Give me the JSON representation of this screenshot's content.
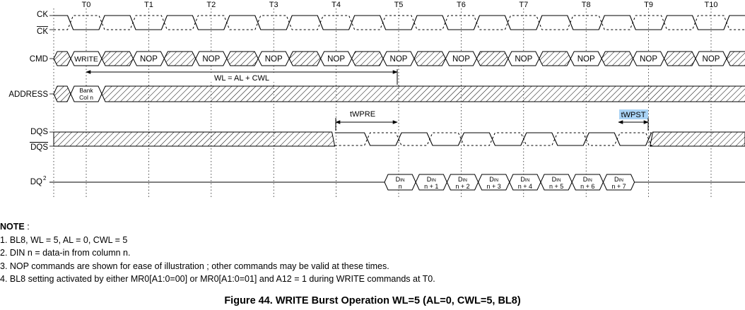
{
  "signals": {
    "ck": "CK",
    "ck_bar": "CK",
    "cmd": "CMD",
    "address": "ADDRESS",
    "dqs": "DQS",
    "dqs_bar": "DQS",
    "dq": "DQ",
    "dq_sup": "2"
  },
  "clock_labels": [
    "T0",
    "T1",
    "T2",
    "T3",
    "T4",
    "T5",
    "T6",
    "T7",
    "T8",
    "T9",
    "T10"
  ],
  "commands": [
    "WRITE",
    "NOP",
    "NOP",
    "NOP",
    "NOP",
    "NOP",
    "NOP",
    "NOP",
    "NOP",
    "NOP",
    "NOP"
  ],
  "address_label": [
    "Bank",
    "Col n"
  ],
  "annotations": {
    "wl": "WL = AL + CWL",
    "twpre": "tWPRE",
    "twpst": "tWPST"
  },
  "dq_data": [
    {
      "top": "D",
      "sub": "IN",
      "bottom": "n"
    },
    {
      "top": "D",
      "sub": "IN",
      "bottom": "n + 1"
    },
    {
      "top": "D",
      "sub": "IN",
      "bottom": "n + 2"
    },
    {
      "top": "D",
      "sub": "IN",
      "bottom": "n + 3"
    },
    {
      "top": "D",
      "sub": "IN",
      "bottom": "n + 4"
    },
    {
      "top": "D",
      "sub": "IN",
      "bottom": "n + 5"
    },
    {
      "top": "D",
      "sub": "IN",
      "bottom": "n + 6"
    },
    {
      "top": "D",
      "sub": "IN",
      "bottom": "n + 7"
    }
  ],
  "colors": {
    "twpst_highlight": "#a9d3f5"
  },
  "notes": {
    "heading": "NOTE",
    "heading_suffix": " :",
    "items": [
      "1. BL8, WL = 5, AL = 0, CWL = 5",
      "2. DIN n  = data-in from column n.",
      "3. NOP commands are shown for ease of illustration ; other commands may be valid at these times.",
      "4. BL8 setting activated by either MR0[A1:0=00] or MR0[A1:0=01]  and A12 = 1 during WRITE commands at T0."
    ]
  },
  "caption": "Figure 44. WRITE Burst Operation WL=5 (AL=0, CWL=5, BL8)"
}
